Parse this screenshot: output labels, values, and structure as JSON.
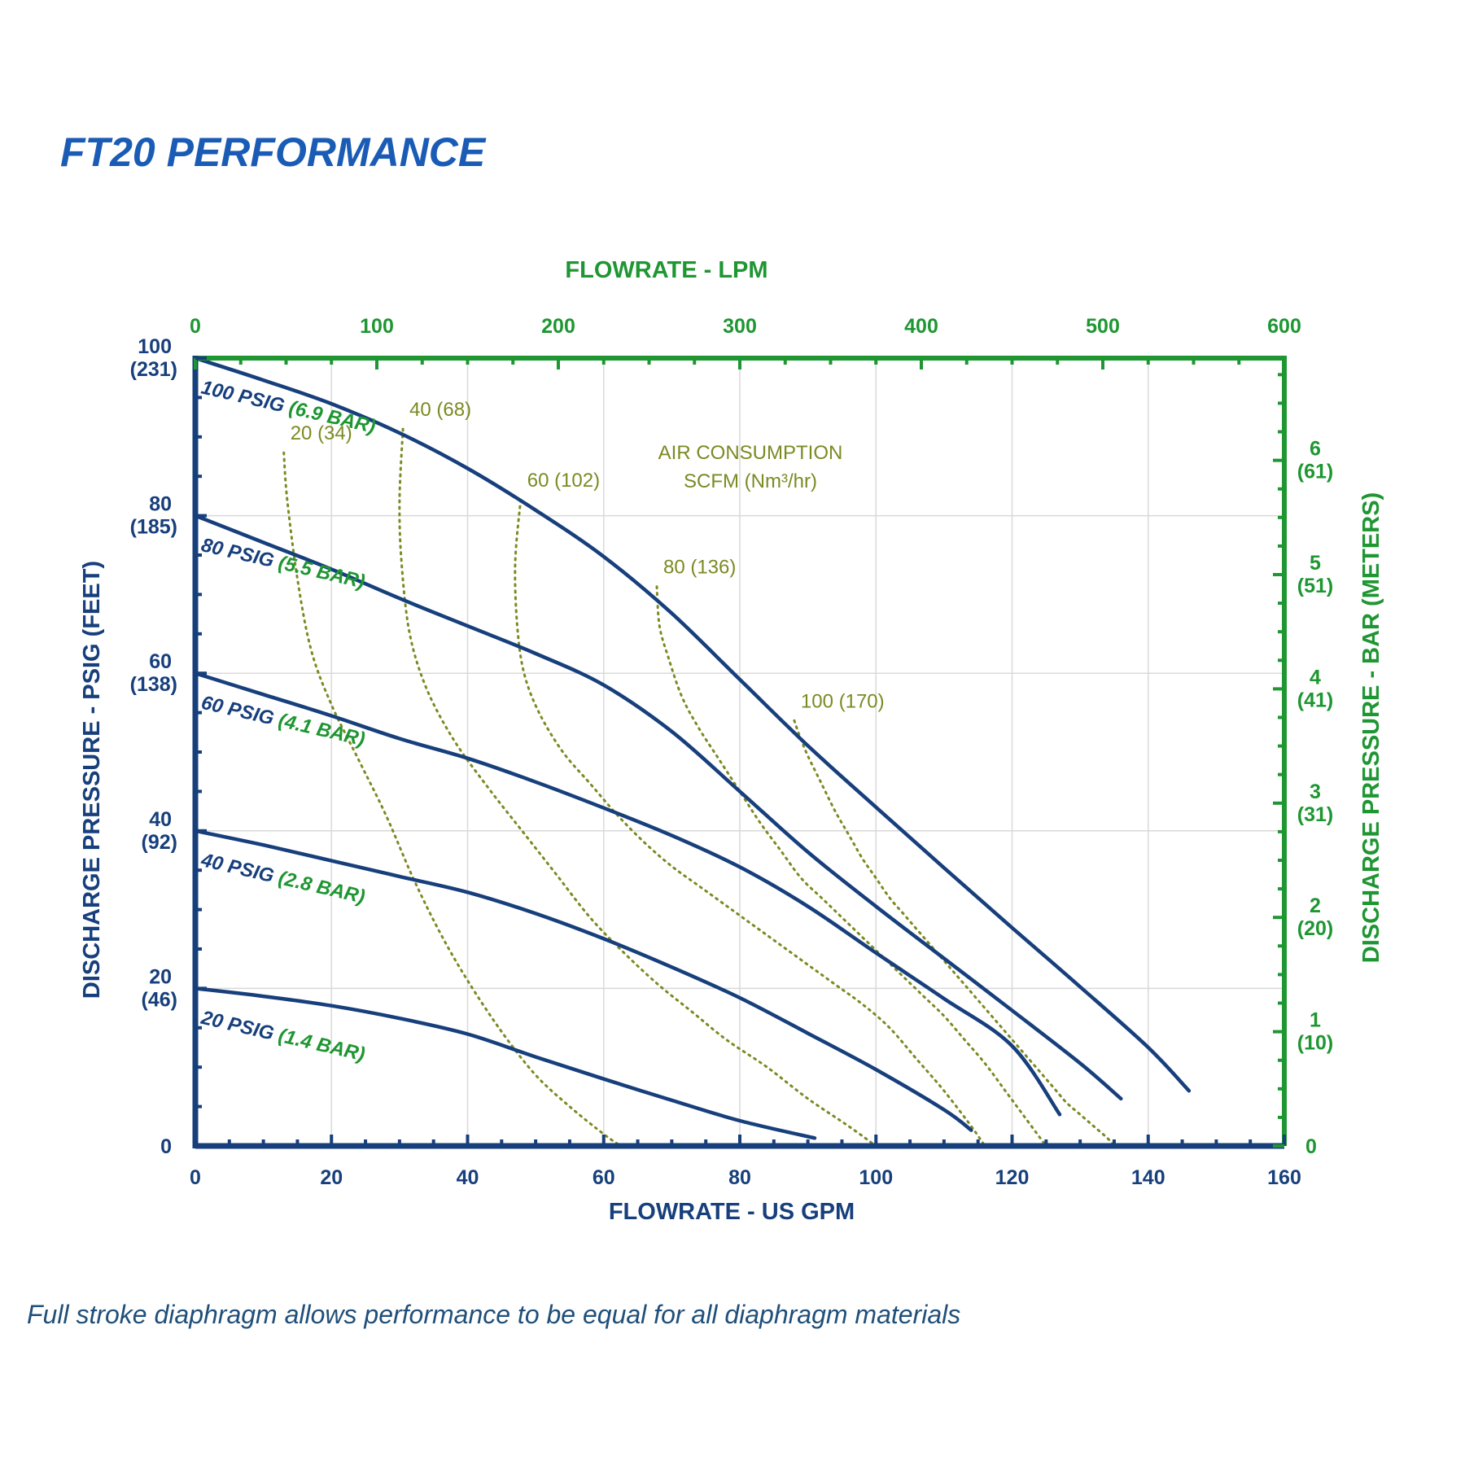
{
  "chart_data": {
    "type": "line",
    "title": "FT20 PERFORMANCE",
    "caption": "Full stroke diaphragm allows performance to be equal for all diaphragm materials",
    "colors": {
      "title": "#1a5cb5",
      "navy": "#173f7c",
      "green": "#1e9632",
      "olive": "#7c8a22",
      "grid": "#d9d9d9"
    },
    "axes": {
      "x_bottom": {
        "label": "FLOWRATE - US GPM",
        "min": 0,
        "max": 160,
        "ticks": [
          "0",
          "20",
          "40",
          "60",
          "80",
          "100",
          "120",
          "140",
          "160"
        ]
      },
      "x_top": {
        "label": "FLOWRATE - LPM",
        "min": 0,
        "max": 600,
        "ticks": [
          "0",
          "100",
          "200",
          "300",
          "400",
          "500",
          "600"
        ]
      },
      "y_left": {
        "label": "DISCHARGE PRESSURE - PSIG (FEET)",
        "min": 0,
        "max": 100,
        "ticks": [
          {
            "value": 0,
            "main": "0",
            "sub": ""
          },
          {
            "value": 20,
            "main": "20",
            "sub": "(46)"
          },
          {
            "value": 40,
            "main": "40",
            "sub": "(92)"
          },
          {
            "value": 60,
            "main": "60",
            "sub": "(138)"
          },
          {
            "value": 80,
            "main": "80",
            "sub": "(185)"
          },
          {
            "value": 100,
            "main": "100",
            "sub": "(231)"
          }
        ]
      },
      "y_right": {
        "label": "DISCHARGE PRESSURE - BAR (METERS)",
        "ticks": [
          {
            "bar": 0,
            "main": "0",
            "sub": ""
          },
          {
            "bar": 1,
            "main": "1",
            "sub": "(10)"
          },
          {
            "bar": 2,
            "main": "2",
            "sub": "(20)"
          },
          {
            "bar": 3,
            "main": "3",
            "sub": "(31)"
          },
          {
            "bar": 4,
            "main": "4",
            "sub": "(41)"
          },
          {
            "bar": 5,
            "main": "5",
            "sub": "(51)"
          },
          {
            "bar": 6,
            "main": "6",
            "sub": "(61)"
          }
        ]
      }
    },
    "grid": true,
    "series": [
      {
        "name": "100 PSIG",
        "name_suffix": "(6.9 BAR)",
        "x": [
          0,
          10,
          20,
          30,
          40,
          50,
          60,
          70,
          80,
          90,
          100,
          110,
          120,
          130,
          140,
          146
        ],
        "y": [
          100,
          97.2,
          94.2,
          90.5,
          86,
          80.7,
          74.8,
          67.6,
          59.2,
          50.8,
          43,
          35.3,
          27.7,
          20.2,
          12.5,
          7
        ]
      },
      {
        "name": "80 PSIG",
        "name_suffix": "(5.5 BAR)",
        "x": [
          0,
          10,
          20,
          30,
          40,
          50,
          60,
          70,
          80,
          90,
          100,
          110,
          120,
          130,
          136
        ],
        "y": [
          80,
          76.6,
          73.2,
          69.5,
          66,
          62.5,
          58.5,
          52.6,
          45,
          37.3,
          30.4,
          23.8,
          17.2,
          10.5,
          6
        ]
      },
      {
        "name": "60 PSIG",
        "name_suffix": "(4.1 BAR)",
        "x": [
          0,
          10,
          20,
          30,
          40,
          50,
          60,
          70,
          80,
          90,
          100,
          110,
          120,
          127
        ],
        "y": [
          60,
          57.3,
          54.6,
          51.7,
          49.2,
          46.2,
          42.9,
          39.4,
          35.4,
          30.4,
          24.5,
          18.7,
          12.7,
          4
        ]
      },
      {
        "name": "40 PSIG",
        "name_suffix": "(2.8 BAR)",
        "x": [
          0,
          10,
          20,
          30,
          40,
          50,
          60,
          70,
          80,
          90,
          100,
          110,
          114
        ],
        "y": [
          40,
          38.2,
          36.2,
          34.2,
          32.2,
          29.5,
          26.3,
          22.7,
          18.8,
          14.3,
          9.7,
          4.6,
          2
        ]
      },
      {
        "name": "20 PSIG",
        "name_suffix": "(1.4 BAR)",
        "x": [
          0,
          10,
          20,
          30,
          40,
          50,
          60,
          70,
          80,
          91
        ],
        "y": [
          20,
          19,
          17.8,
          16.2,
          14.2,
          11.3,
          8.5,
          5.8,
          3.2,
          1
        ]
      }
    ],
    "air_consumption": {
      "label_line1": "AIR CONSUMPTION",
      "label_line2": "SCFM (Nm³/hr)",
      "curves": [
        {
          "label": "20 (34)",
          "x": [
            13,
            13.5,
            15,
            17,
            20,
            24,
            28,
            32,
            36,
            40,
            45,
            50,
            55,
            60,
            62.5
          ],
          "y": [
            88,
            82,
            72,
            63,
            56,
            49,
            42,
            34,
            27,
            21,
            14.5,
            9,
            5,
            1.5,
            0
          ]
        },
        {
          "label": "40 (68)",
          "x": [
            30.5,
            30,
            30.3,
            31.5,
            34,
            38,
            43,
            48,
            53,
            58,
            63,
            68,
            73,
            78,
            84,
            90,
            96,
            100
          ],
          "y": [
            91,
            82,
            74,
            65,
            58,
            51.5,
            45.5,
            40,
            34.5,
            29,
            24.5,
            20.5,
            17,
            13.5,
            10,
            6,
            2.5,
            0
          ]
        },
        {
          "label": "60 (102)",
          "x": [
            47.8,
            47,
            47.3,
            48.3,
            50.5,
            54,
            58,
            62,
            66,
            70,
            74,
            78,
            82,
            86,
            90,
            94,
            98,
            102,
            106,
            110,
            114,
            116
          ],
          "y": [
            82,
            74,
            66,
            60,
            55,
            50,
            46,
            42,
            38.5,
            35.5,
            33,
            30.5,
            28,
            25.5,
            23,
            20.5,
            18,
            15,
            11,
            7,
            2.5,
            0
          ]
        },
        {
          "label": "80 (136)",
          "x": [
            67.8,
            68.2,
            69.5,
            71.5,
            74,
            77,
            80,
            83,
            86,
            89,
            92,
            95,
            98,
            101,
            104,
            107,
            110,
            113,
            116,
            119,
            122,
            125
          ],
          "y": [
            71,
            66,
            62,
            57,
            53,
            49,
            45,
            41,
            37.5,
            34,
            31.5,
            29,
            26.5,
            24,
            21.5,
            19,
            16.5,
            13.5,
            10.5,
            7,
            3.5,
            0
          ]
        },
        {
          "label": "100 (170)",
          "x": [
            88,
            88.8,
            90,
            92,
            94,
            96,
            98,
            100,
            102,
            104,
            106,
            108,
            110,
            112,
            114,
            116,
            118,
            120,
            122,
            124,
            126,
            128,
            130,
            132,
            134,
            135
          ],
          "y": [
            54,
            52,
            49.5,
            46,
            42.5,
            39.5,
            36.5,
            34,
            31.5,
            29.5,
            27.5,
            25.5,
            23.5,
            21.5,
            19.5,
            17.5,
            15.5,
            13.5,
            11.5,
            9.5,
            7.5,
            5.5,
            4,
            2.5,
            1,
            0
          ]
        }
      ]
    }
  }
}
